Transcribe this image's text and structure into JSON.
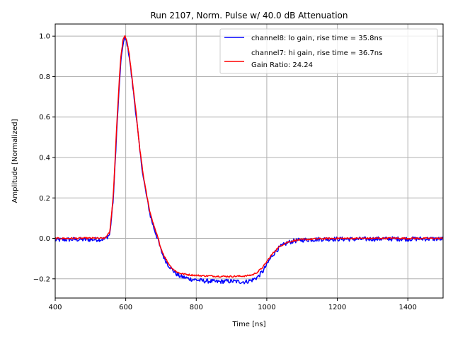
{
  "chart_data": {
    "type": "line",
    "title": "Run 2107, Norm. Pulse w/ 40.0 dB Attenuation",
    "xlabel": "Time [ns]",
    "ylabel": "Amplitude [Normalized]",
    "xlim": [
      400,
      1500
    ],
    "ylim": [
      -0.295,
      1.06
    ],
    "x_ticks": [
      400,
      600,
      800,
      1000,
      1200,
      1400
    ],
    "x_tick_labels": [
      "400",
      "600",
      "800",
      "1000",
      "1200",
      "1400"
    ],
    "y_ticks": [
      -0.2,
      0.0,
      0.2,
      0.4,
      0.6,
      0.8,
      1.0
    ],
    "y_tick_labels": [
      "−0.2",
      "0.0",
      "0.2",
      "0.4",
      "0.6",
      "0.8",
      "1.0"
    ],
    "grid": true,
    "legend_position": "top-right",
    "legend_note": "Gain Ratio: 24.24",
    "series": [
      {
        "name": "channel8: lo gain, rise time = 35.8ns",
        "color": "#0000ff",
        "x": [
          400,
          450,
          500,
          540,
          555,
          565,
          575,
          585,
          592,
          598,
          603,
          610,
          620,
          630,
          640,
          650,
          660,
          670,
          680,
          690,
          700,
          710,
          720,
          730,
          740,
          750,
          760,
          780,
          800,
          820,
          840,
          860,
          880,
          900,
          920,
          940,
          960,
          975,
          990,
          1000,
          1010,
          1020,
          1030,
          1040,
          1050,
          1060,
          1080,
          1100,
          1150,
          1200,
          1250,
          1300,
          1350,
          1400,
          1450,
          1500
        ],
        "y": [
          -0.008,
          -0.005,
          -0.006,
          -0.004,
          0.02,
          0.2,
          0.55,
          0.85,
          0.96,
          0.99,
          0.97,
          0.9,
          0.75,
          0.6,
          0.43,
          0.3,
          0.2,
          0.11,
          0.05,
          0.0,
          -0.06,
          -0.1,
          -0.13,
          -0.15,
          -0.17,
          -0.185,
          -0.19,
          -0.2,
          -0.205,
          -0.21,
          -0.212,
          -0.215,
          -0.212,
          -0.212,
          -0.214,
          -0.215,
          -0.205,
          -0.19,
          -0.16,
          -0.13,
          -0.1,
          -0.075,
          -0.055,
          -0.04,
          -0.03,
          -0.02,
          -0.012,
          -0.008,
          -0.004,
          -0.003,
          -0.004,
          -0.003,
          -0.002,
          -0.003,
          -0.002,
          -0.003
        ]
      },
      {
        "name": "channel7: hi gain, rise time = 36.7ns",
        "color": "#ff0000",
        "x": [
          400,
          450,
          500,
          540,
          555,
          565,
          575,
          585,
          592,
          598,
          603,
          610,
          620,
          630,
          640,
          650,
          660,
          670,
          680,
          690,
          700,
          710,
          720,
          730,
          740,
          750,
          760,
          780,
          800,
          820,
          840,
          860,
          880,
          900,
          920,
          940,
          960,
          975,
          990,
          1000,
          1010,
          1020,
          1030,
          1040,
          1050,
          1060,
          1080,
          1100,
          1150,
          1200,
          1250,
          1300,
          1350,
          1400,
          1450,
          1500
        ],
        "y": [
          0.0,
          0.0,
          0.001,
          0.0,
          0.03,
          0.22,
          0.58,
          0.88,
          0.98,
          1.0,
          0.98,
          0.91,
          0.76,
          0.61,
          0.44,
          0.31,
          0.21,
          0.12,
          0.06,
          0.01,
          -0.05,
          -0.09,
          -0.12,
          -0.145,
          -0.16,
          -0.17,
          -0.175,
          -0.18,
          -0.183,
          -0.185,
          -0.186,
          -0.187,
          -0.188,
          -0.188,
          -0.187,
          -0.186,
          -0.18,
          -0.165,
          -0.14,
          -0.115,
          -0.09,
          -0.068,
          -0.05,
          -0.036,
          -0.026,
          -0.018,
          -0.01,
          -0.006,
          -0.002,
          0.0,
          0.0,
          0.0,
          0.001,
          0.0,
          0.0,
          0.0
        ]
      }
    ]
  }
}
